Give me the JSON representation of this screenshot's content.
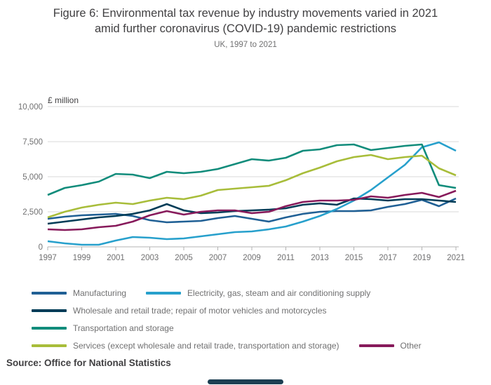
{
  "header": {
    "title": "Figure 6: Environmental tax revenue by industry movements varied in 2021 amid further coronavirus (COVID-19) pandemic restrictions",
    "title_line1": "Figure 6: Environmental tax revenue by industry movements varied in 2021",
    "title_line2": "amid further coronavirus (COVID-19) pandemic restrictions",
    "subtitle": "UK, 1997 to 2021"
  },
  "source": "Source: Office for National Statistics",
  "chart_data": {
    "type": "line",
    "title": "Environmental tax revenue by industry",
    "ylabel": "£ million",
    "xlabel": "",
    "ylim": [
      0,
      10000
    ],
    "grid": true,
    "legend_position": "bottom",
    "y_ticks": [
      {
        "value": 0,
        "label": "0"
      },
      {
        "value": 2500,
        "label": "2,500"
      },
      {
        "value": 5000,
        "label": "5,000"
      },
      {
        "value": 7500,
        "label": "7,500"
      },
      {
        "value": 10000,
        "label": "10,000"
      }
    ],
    "x_ticks": [
      "1997",
      "1999",
      "2001",
      "2003",
      "2005",
      "2007",
      "2009",
      "2011",
      "2013",
      "2015",
      "2017",
      "2019",
      "2021"
    ],
    "x": [
      1997,
      1998,
      1999,
      2000,
      2001,
      2002,
      2003,
      2004,
      2005,
      2006,
      2007,
      2008,
      2009,
      2010,
      2011,
      2012,
      2013,
      2014,
      2015,
      2016,
      2017,
      2018,
      2019,
      2020,
      2021
    ],
    "series": [
      {
        "name": "Manufacturing",
        "color": "#206095",
        "values": [
          2000,
          2150,
          2250,
          2300,
          2350,
          2200,
          1900,
          1750,
          1800,
          1850,
          2050,
          2200,
          2000,
          1800,
          2100,
          2350,
          2500,
          2550,
          2550,
          2600,
          2850,
          3050,
          3350,
          2900,
          3450
        ]
      },
      {
        "name": "Electricity, gas, steam and air conditioning supply",
        "color": "#27A0CC",
        "values": [
          400,
          250,
          150,
          150,
          450,
          700,
          650,
          550,
          600,
          750,
          900,
          1050,
          1100,
          1250,
          1450,
          1800,
          2200,
          2700,
          3300,
          4050,
          4950,
          5850,
          7100,
          7450,
          6850
        ]
      },
      {
        "name": "Wholesale and retail trade; repair of motor vehicles and motorcycles",
        "color": "#003C57",
        "values": [
          1650,
          1800,
          1950,
          2100,
          2200,
          2350,
          2600,
          3050,
          2600,
          2400,
          2450,
          2550,
          2600,
          2650,
          2750,
          3000,
          3100,
          3000,
          3450,
          3400,
          3300,
          3400,
          3400,
          3300,
          3200
        ]
      },
      {
        "name": "Transportation and storage",
        "color": "#118C7B",
        "values": [
          3700,
          4200,
          4400,
          4650,
          5200,
          5150,
          4900,
          5350,
          5250,
          5350,
          5550,
          5900,
          6250,
          6150,
          6350,
          6850,
          6950,
          7250,
          7300,
          6900,
          7050,
          7200,
          7300,
          4400,
          4200
        ]
      },
      {
        "name": "Services (except wholesale and retail trade, transportation and storage)",
        "color": "#A8BD3A",
        "values": [
          2100,
          2500,
          2800,
          3000,
          3150,
          3050,
          3300,
          3500,
          3400,
          3650,
          4050,
          4150,
          4250,
          4350,
          4750,
          5250,
          5650,
          6100,
          6400,
          6550,
          6250,
          6400,
          6500,
          5600,
          5100
        ]
      },
      {
        "name": "Other",
        "color": "#871A5B",
        "values": [
          1250,
          1200,
          1250,
          1400,
          1500,
          1800,
          2250,
          2550,
          2300,
          2500,
          2600,
          2600,
          2400,
          2500,
          2900,
          3200,
          3300,
          3300,
          3350,
          3600,
          3500,
          3700,
          3850,
          3550,
          4000
        ]
      }
    ]
  },
  "style_colors": {
    "title_text": "#414042",
    "muted_text": "#707071",
    "gridline": "#d9d9d9",
    "axis_line": "#b3b3b3"
  }
}
